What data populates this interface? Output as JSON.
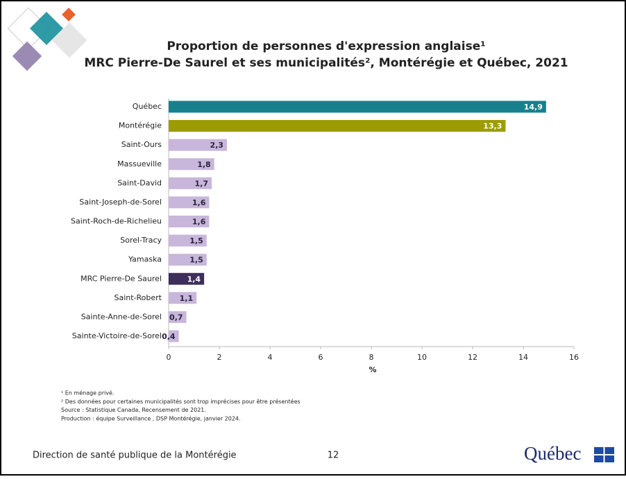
{
  "chart_data": {
    "type": "hbar",
    "title": [
      "Proportion de personnes d'expression anglaise¹",
      "MRC Pierre-De Saurel et ses municipalités², Montérégie et Québec, 2021"
    ],
    "categories": [
      "Québec",
      "Montérégie",
      "Saint-Ours",
      "Massueville",
      "Saint-David",
      "Saint-Joseph-de-Sorel",
      "Saint-Roch-de-Richelieu",
      "Sorel-Tracy",
      "Yamaska",
      "MRC Pierre-De Saurel",
      "Saint-Robert",
      "Sainte-Anne-de-Sorel",
      "Sainte-Victoire-de-Sorel"
    ],
    "values": [
      14.9,
      13.3,
      2.3,
      1.8,
      1.7,
      1.6,
      1.6,
      1.5,
      1.5,
      1.4,
      1.1,
      0.7,
      0.4
    ],
    "value_labels": [
      "14,9",
      "13,3",
      "2,3",
      "1,8",
      "1,7",
      "1,6",
      "1,6",
      "1,5",
      "1,5",
      "1,4",
      "1,1",
      "0,7",
      "0,4"
    ],
    "colors": [
      "#17808c",
      "#9c9c00",
      "#c8b7da",
      "#c8b7da",
      "#c8b7da",
      "#c8b7da",
      "#c8b7da",
      "#c8b7da",
      "#c8b7da",
      "#3d2e5a",
      "#c8b7da",
      "#c8b7da",
      "#c8b7da"
    ],
    "xlim": [
      0,
      16
    ],
    "xticks": [
      0,
      2,
      4,
      6,
      8,
      10,
      12,
      14,
      16
    ],
    "xlabel": "%",
    "footnotes": [
      "¹ En ménage privé.",
      "² Des données pour certaines municipalités sont trop imprécises pour être présentées",
      "Source : Statistique Canada, Recensement de 2021.",
      "Production : équipe Surveillance , DSP Montérégie, janvier 2024."
    ]
  },
  "footer": {
    "organization": "Direction de santé publique de la Montérégie",
    "page": "12",
    "logo": "Québec"
  }
}
